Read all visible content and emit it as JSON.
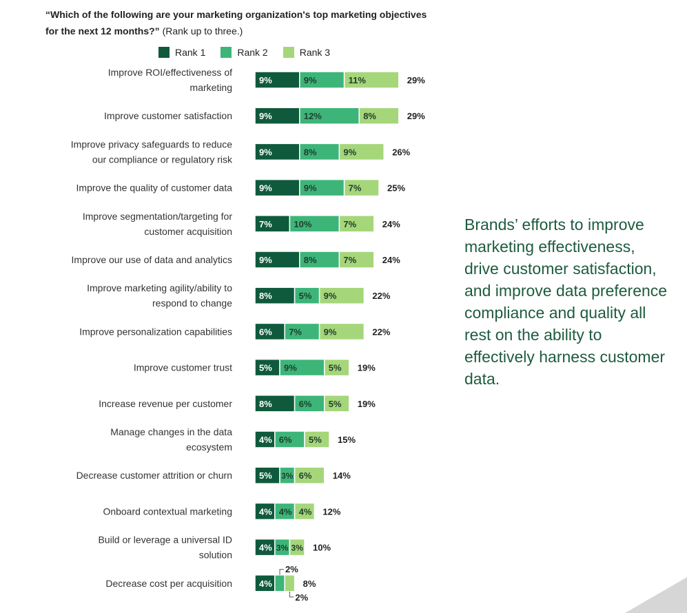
{
  "header": {
    "question": "“Which of the following are your marketing organization's top marketing objectives for the next 12 months?”",
    "note": "(Rank up to three.)"
  },
  "legend": [
    {
      "name": "Rank 1",
      "color": "#0f5a3c"
    },
    {
      "name": "Rank 2",
      "color": "#3db579"
    },
    {
      "name": "Rank 3",
      "color": "#a6d67a"
    }
  ],
  "callout": "Brands’ efforts to improve marketing effectiveness, drive customer satisfaction, and improve data preference compliance and quality all rest on the ability to effectively harness customer data.",
  "chart_data": {
    "type": "bar",
    "orientation": "horizontal",
    "stacked": true,
    "categories": [
      [
        "Improve ROI/effectiveness of",
        "marketing"
      ],
      [
        "Improve customer satisfaction"
      ],
      [
        "Improve privacy safeguards to reduce",
        "our compliance or regulatory risk"
      ],
      [
        "Improve the quality of customer data"
      ],
      [
        "Improve segmentation/targeting for",
        "customer acquisition"
      ],
      [
        "Improve our use of data and analytics"
      ],
      [
        "Improve marketing agility/ability to",
        "respond to change"
      ],
      [
        "Improve personalization capabilities"
      ],
      [
        "Improve customer trust"
      ],
      [
        "Increase revenue per customer"
      ],
      [
        "Manage changes in the data",
        "ecosystem"
      ],
      [
        "Decrease customer attrition or churn"
      ],
      [
        "Onboard contextual marketing"
      ],
      [
        "Build or leverage a universal ID",
        "solution"
      ],
      [
        "Decrease cost per acquisition"
      ]
    ],
    "series": [
      {
        "name": "Rank 1",
        "color": "#0f5a3c",
        "values": [
          9,
          9,
          9,
          9,
          7,
          9,
          8,
          6,
          5,
          8,
          4,
          5,
          4,
          4,
          4
        ]
      },
      {
        "name": "Rank 2",
        "color": "#3db579",
        "values": [
          9,
          12,
          8,
          9,
          10,
          8,
          5,
          7,
          9,
          6,
          6,
          3,
          4,
          3,
          2
        ]
      },
      {
        "name": "Rank 3",
        "color": "#a6d67a",
        "values": [
          11,
          8,
          9,
          7,
          7,
          7,
          9,
          9,
          5,
          5,
          5,
          6,
          4,
          3,
          2
        ]
      }
    ],
    "totals": [
      29,
      29,
      26,
      25,
      24,
      24,
      22,
      22,
      19,
      19,
      15,
      14,
      12,
      10,
      8
    ],
    "unit": "%"
  }
}
